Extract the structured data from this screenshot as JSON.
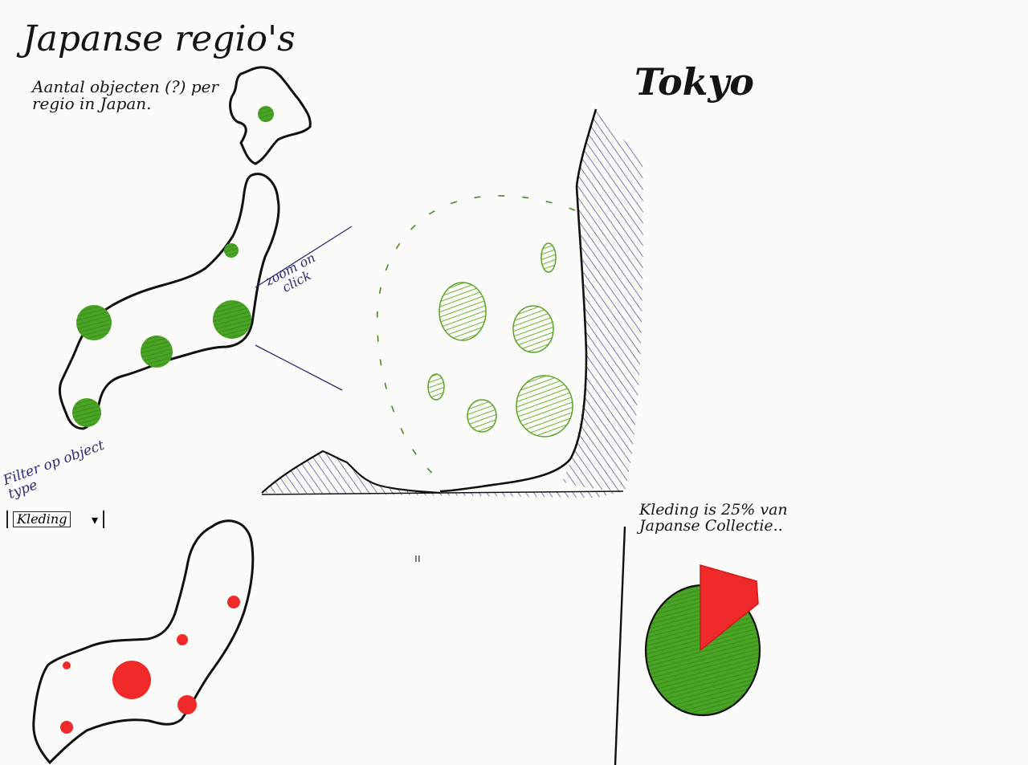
{
  "header": {
    "title": "Japanse regio's",
    "subtitle": "Aantal objecten (?) per regio in Japan."
  },
  "detail": {
    "title": "Tokyo",
    "zoom_note": "zoom on click"
  },
  "filter": {
    "label": "Filter op object type",
    "selected": "Kleding"
  },
  "pie_panel": {
    "note": "Kleding is 25% van Japanse Collectie..",
    "share_percent": 25
  },
  "stray_mark": "ıı",
  "colors": {
    "ink": "#141414",
    "blue_ink": "#2a2a78",
    "green_marker": "#3f9e1f",
    "light_green": "#7cbd3f",
    "red_marker": "#f02a2a"
  },
  "icons": {
    "dropdown": "chevron-down-icon"
  }
}
